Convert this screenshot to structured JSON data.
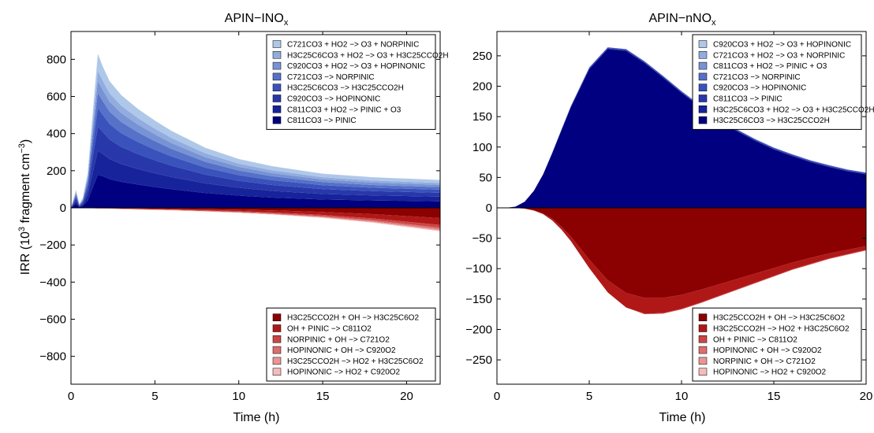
{
  "figure": {
    "ylabel_main": "IRR (10",
    "ylabel_sup": "3",
    "ylabel_rest": " fragment cm",
    "ylabel_sup2": "−3",
    "ylabel_end": ")"
  },
  "chart_data": [
    {
      "type": "area",
      "title_main": "APIN−INO",
      "title_sub": "x",
      "xlabel": "Time (h)",
      "xlim": [
        0,
        22
      ],
      "ylim": [
        -950,
        950
      ],
      "xticks": [
        "0",
        "5",
        "10",
        "15",
        "20"
      ],
      "xtick_values": [
        0,
        5,
        10,
        15,
        20
      ],
      "yticks": [
        "−800",
        "−600",
        "−400",
        "−200",
        "0",
        "200",
        "400",
        "600",
        "800"
      ],
      "ytick_values": [
        -800,
        -600,
        -400,
        -200,
        0,
        200,
        400,
        600,
        800
      ],
      "grid": false,
      "legend_positive_position": "top-right",
      "legend_negative_position": "bottom-right",
      "x": [
        0,
        0.3,
        0.5,
        0.7,
        1.0,
        1.3,
        1.6,
        1.9,
        2.3,
        3,
        4,
        5,
        6,
        8,
        10,
        12,
        15,
        18,
        22
      ],
      "positive_series": [
        {
          "name": "C811CO3 −> PINIC",
          "color": "#000080",
          "values": [
            0,
            22,
            4,
            10,
            40,
            110,
            178,
            170,
            155,
            140,
            125,
            112,
            100,
            80,
            66,
            55,
            45,
            40,
            35
          ]
        },
        {
          "name": "C811CO3 + HO2 −> PINIC + O3",
          "color": "#17239a",
          "values": [
            0,
            15,
            3,
            8,
            30,
            82,
            130,
            120,
            108,
            96,
            84,
            74,
            66,
            52,
            42,
            36,
            30,
            27,
            25
          ]
        },
        {
          "name": "C920CO3 −> HOPINONIC",
          "color": "#2838aa",
          "values": [
            0,
            15,
            3,
            8,
            30,
            82,
            130,
            118,
            105,
            92,
            80,
            70,
            61,
            47,
            38,
            32,
            26,
            23,
            21
          ]
        },
        {
          "name": "H3C25C6CO3 −> H3C25CCO2H",
          "color": "#3a52bb",
          "values": [
            0,
            12,
            3,
            7,
            25,
            65,
            100,
            92,
            83,
            74,
            65,
            57,
            50,
            38,
            30,
            26,
            21,
            18,
            17
          ]
        },
        {
          "name": "C721CO3 −> NORPINIC",
          "color": "#5571c8",
          "values": [
            0,
            10,
            2,
            6,
            20,
            52,
            80,
            74,
            67,
            60,
            52,
            46,
            40,
            31,
            25,
            21,
            17,
            15,
            14
          ]
        },
        {
          "name": "C920CO3 + HO2 −> O3 + HOPINONIC",
          "color": "#7793d4",
          "values": [
            0,
            8,
            2,
            5,
            16,
            42,
            65,
            60,
            54,
            48,
            42,
            37,
            32,
            25,
            20,
            17,
            14,
            13,
            12
          ]
        },
        {
          "name": "H3C25C6CO3 + HO2 −> O3 + H3C25CCO2H",
          "color": "#93acdf",
          "values": [
            0,
            7,
            2,
            4,
            13,
            35,
            55,
            50,
            45,
            40,
            35,
            31,
            27,
            21,
            17,
            15,
            12,
            11,
            10
          ]
        },
        {
          "name": "C721CO3 + HO2 −> O3 + NORPINIC",
          "color": "#afc8e9",
          "values": [
            0,
            8,
            2,
            5,
            16,
            48,
            92,
            76,
            66,
            57,
            49,
            43,
            38,
            30,
            25,
            22,
            19,
            18,
            16
          ]
        }
      ],
      "negative_series": [
        {
          "name": "H3C25CCO2H + OH −> H3C25C6O2",
          "color": "#8b0000",
          "values": [
            0,
            0,
            0,
            0,
            0,
            -1,
            -1,
            -1,
            -1,
            -2,
            -3,
            -4,
            -5,
            -7,
            -10,
            -14,
            -22,
            -34,
            -55
          ]
        },
        {
          "name": "OH + PINIC −> C811O2",
          "color": "#b01818",
          "values": [
            0,
            0,
            0,
            0,
            0,
            -1,
            -1,
            -1,
            -1,
            -2,
            -3,
            -3,
            -4,
            -6,
            -8,
            -11,
            -16,
            -23,
            -37
          ]
        },
        {
          "name": "NORPINIC + OH −> C721O2",
          "color": "#cb4545",
          "values": [
            0,
            0,
            0,
            0,
            0,
            0,
            -1,
            -1,
            -1,
            -1,
            -1,
            -2,
            -2,
            -3,
            -4,
            -5,
            -7,
            -10,
            -15
          ]
        },
        {
          "name": "HOPINONIC + OH −> C920O2",
          "color": "#dd6e6e",
          "values": [
            0,
            0,
            0,
            0,
            0,
            0,
            0,
            0,
            -1,
            -1,
            -1,
            -1,
            -1,
            -2,
            -2,
            -3,
            -4,
            -6,
            -9
          ]
        },
        {
          "name": "H3C25CCO2H −> HO2 + H3C25C6O2",
          "color": "#ea9595",
          "values": [
            0,
            0,
            0,
            0,
            0,
            0,
            0,
            0,
            0,
            -1,
            -1,
            -1,
            -1,
            -1,
            -2,
            -2,
            -3,
            -4,
            -6
          ]
        },
        {
          "name": "HOPINONIC −> HO2 + C920O2",
          "color": "#f4bcbc",
          "values": [
            0,
            0,
            0,
            0,
            0,
            0,
            0,
            0,
            0,
            0,
            -1,
            -1,
            -1,
            -1,
            -1,
            -1,
            -2,
            -3,
            -4
          ]
        }
      ]
    },
    {
      "type": "area",
      "title_main": "APIN−nNO",
      "title_sub": "x",
      "xlabel": "Time (h)",
      "xlim": [
        0,
        20
      ],
      "ylim": [
        -290,
        290
      ],
      "xticks": [
        "0",
        "5",
        "10",
        "15",
        "20"
      ],
      "xtick_values": [
        0,
        5,
        10,
        15,
        20
      ],
      "yticks": [
        "−250",
        "−200",
        "−150",
        "−100",
        "−50",
        "0",
        "50",
        "100",
        "150",
        "200",
        "250"
      ],
      "ytick_values": [
        -250,
        -200,
        -150,
        -100,
        -50,
        0,
        50,
        100,
        150,
        200,
        250
      ],
      "grid": false,
      "legend_positive_position": "top-right",
      "legend_negative_position": "bottom-right",
      "x": [
        0,
        0.5,
        1,
        1.5,
        2,
        2.5,
        3,
        3.5,
        4,
        5,
        6,
        7,
        8,
        9,
        10,
        11,
        12,
        13,
        14,
        15,
        16,
        17,
        18,
        19,
        20
      ],
      "positive_series": [
        {
          "name": "H3C25C6CO3 −> H3C25CCO2H",
          "color": "#000080",
          "values": [
            0,
            0.2,
            2,
            10,
            28,
            55,
            90,
            128,
            165,
            228,
            261,
            258,
            238,
            214,
            189,
            166,
            144,
            126,
            110,
            96,
            85,
            75,
            67,
            60,
            55
          ]
        },
        {
          "name": "H3C25C6CO3 + HO2 −> O3 + H3C25CCO2H",
          "color": "#17239a",
          "values": [
            0,
            0,
            0,
            0,
            0,
            0,
            1,
            1,
            1,
            1,
            1,
            1,
            1,
            1,
            1,
            1,
            1,
            1,
            1,
            1,
            1,
            1,
            1,
            1,
            1
          ]
        },
        {
          "name": "C811CO3 −> PINIC",
          "color": "#2838aa",
          "values": [
            0,
            0,
            0,
            0,
            0,
            0,
            0,
            0,
            1,
            1,
            1,
            1,
            1,
            1,
            1,
            1,
            1,
            1,
            1,
            1,
            1,
            1,
            1,
            1,
            1
          ]
        },
        {
          "name": "C920CO3 −> HOPINONIC",
          "color": "#3a52bb",
          "values": [
            0,
            0,
            0,
            0,
            0,
            0,
            0,
            0,
            0,
            1,
            1,
            1,
            1,
            1,
            1,
            1,
            1,
            1,
            1,
            1,
            1,
            1,
            1,
            1,
            1
          ]
        },
        {
          "name": "C721CO3 −> NORPINIC",
          "color": "#5571c8",
          "values": [
            0,
            0,
            0,
            0,
            0,
            0,
            0,
            0,
            0,
            0,
            0,
            0,
            0,
            0,
            0,
            0,
            0,
            0,
            0,
            0,
            0,
            0,
            0,
            0,
            0
          ]
        },
        {
          "name": "C811CO3 + HO2 −> PINIC + O3",
          "color": "#7793d4",
          "values": [
            0,
            0,
            0,
            0,
            0,
            0,
            0,
            0,
            0,
            0,
            0,
            0,
            0,
            0,
            0,
            0,
            0,
            0,
            0,
            0,
            0,
            0,
            0,
            0,
            0
          ]
        },
        {
          "name": "C721CO3 + HO2 −> O3 + NORPINIC",
          "color": "#93acdf",
          "values": [
            0,
            0,
            0,
            0,
            0,
            0,
            0,
            0,
            0,
            0,
            0,
            0,
            0,
            0,
            0,
            0,
            0,
            0,
            0,
            0,
            0,
            0,
            0,
            0,
            0
          ]
        },
        {
          "name": "C920CO3 + HO2 −> O3 + HOPINONIC",
          "color": "#afc8e9",
          "values": [
            0,
            0,
            0,
            0,
            0,
            0,
            0,
            0,
            0,
            0,
            0,
            0,
            0,
            0,
            0,
            0,
            0,
            0,
            0,
            0,
            0,
            0,
            0,
            0,
            0
          ]
        }
      ],
      "negative_series": [
        {
          "name": "H3C25CCO2H + OH −> H3C25C6O2",
          "color": "#8b0000",
          "values": [
            0,
            0,
            -0.2,
            -1.2,
            -4,
            -9,
            -18,
            -31,
            -47,
            -85,
            -119,
            -140,
            -148,
            -148,
            -143,
            -135,
            -126,
            -117,
            -108,
            -99,
            -90,
            -82,
            -75,
            -69,
            -63
          ]
        },
        {
          "name": "H3C25CCO2H −> HO2 + H3C25C6O2",
          "color": "#b01818",
          "values": [
            0,
            0,
            0,
            -0.2,
            -0.6,
            -1.4,
            -2.8,
            -5,
            -7.5,
            -14,
            -20,
            -24,
            -26,
            -25,
            -23,
            -21,
            -19,
            -17,
            -15,
            -13,
            -11,
            -10,
            -8,
            -7,
            -6
          ]
        },
        {
          "name": "OH + PINIC −> C811O2",
          "color": "#cb4545",
          "values": [
            0,
            0,
            0,
            0,
            0,
            0,
            0,
            0,
            0,
            0,
            0,
            0,
            -1,
            -1,
            -1,
            -1,
            -1,
            -1,
            -1,
            -1,
            -1,
            -1,
            -1,
            -1,
            -1
          ]
        },
        {
          "name": "HOPINONIC + OH −> C920O2",
          "color": "#dd6e6e",
          "values": [
            0,
            0,
            0,
            0,
            0,
            0,
            0,
            0,
            0,
            0,
            0,
            0,
            0,
            0,
            0,
            0,
            0,
            0,
            0,
            0,
            0,
            0,
            0,
            0,
            0
          ]
        },
        {
          "name": "NORPINIC + OH −> C721O2",
          "color": "#ea9595",
          "values": [
            0,
            0,
            0,
            0,
            0,
            0,
            0,
            0,
            0,
            0,
            0,
            0,
            0,
            0,
            0,
            0,
            0,
            0,
            0,
            0,
            0,
            0,
            0,
            0,
            0
          ]
        },
        {
          "name": "HOPINONIC −> HO2 + C920O2",
          "color": "#f4bcbc",
          "values": [
            0,
            0,
            0,
            0,
            0,
            0,
            0,
            0,
            0,
            0,
            0,
            0,
            0,
            0,
            0,
            0,
            0,
            0,
            0,
            0,
            0,
            0,
            0,
            0,
            0
          ]
        }
      ]
    }
  ]
}
